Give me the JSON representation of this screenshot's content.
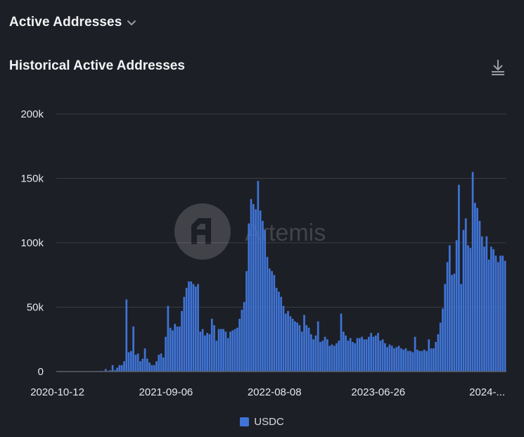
{
  "header": {
    "title": "Active Addresses"
  },
  "chart_title": "Historical Active Addresses",
  "watermark": "Artemis",
  "colors": {
    "background": "#1d1f26",
    "bar": "#3f74d6",
    "grid": "#3a3d46",
    "text": "#e6e7ea"
  },
  "chart_data": {
    "type": "bar",
    "title": "Historical Active Addresses",
    "xlabel": "",
    "ylabel": "",
    "ylim": [
      0,
      200000
    ],
    "y_ticks": [
      0,
      50000,
      100000,
      150000,
      200000
    ],
    "y_tick_labels": [
      "0",
      "50k",
      "100k",
      "150k",
      "200k"
    ],
    "x_tick_labels": [
      "2020-10-12",
      "2021-09-06",
      "2022-08-08",
      "2023-06-26",
      "2024-..."
    ],
    "x_tick_indices": [
      0,
      47,
      94,
      139,
      181
    ],
    "grid": true,
    "legend_position": "bottom",
    "series": [
      {
        "name": "USDC",
        "color": "#3f74d6",
        "values": [
          0,
          0,
          0,
          0,
          0,
          0,
          0,
          0,
          0,
          0,
          0,
          0,
          0,
          0,
          0,
          0,
          0,
          0,
          0,
          500,
          0,
          2000,
          500,
          1000,
          5000,
          1000,
          3000,
          5000,
          5000,
          8000,
          56000,
          15000,
          16000,
          35000,
          13000,
          14000,
          8000,
          10000,
          18000,
          10000,
          7000,
          5000,
          5000,
          8000,
          13000,
          14000,
          11000,
          27000,
          51000,
          34000,
          32000,
          37000,
          35000,
          35000,
          47000,
          58000,
          65000,
          70000,
          70000,
          68000,
          66000,
          68000,
          31000,
          33000,
          28000,
          30000,
          29000,
          41000,
          36000,
          24000,
          33000,
          33000,
          33000,
          31000,
          26000,
          31000,
          32000,
          33000,
          34000,
          41000,
          48000,
          54000,
          78000,
          115000,
          134000,
          130000,
          126000,
          148000,
          125000,
          117000,
          110000,
          89000,
          80000,
          78000,
          75000,
          65000,
          62000,
          58000,
          51000,
          45000,
          47000,
          43000,
          41000,
          39000,
          38000,
          36000,
          31000,
          44000,
          36000,
          34000,
          29000,
          25000,
          28000,
          39000,
          23000,
          24000,
          27000,
          25000,
          20000,
          21000,
          20000,
          22000,
          24000,
          45000,
          31000,
          28000,
          24000,
          26000,
          23000,
          22000,
          26000,
          26000,
          27000,
          25000,
          25000,
          27000,
          30000,
          27000,
          28000,
          30000,
          24000,
          25000,
          22000,
          19000,
          21000,
          20000,
          18000,
          19000,
          20000,
          18000,
          17000,
          18000,
          16000,
          16000,
          15000,
          27000,
          17000,
          16000,
          16000,
          17000,
          16000,
          25000,
          18000,
          18000,
          23000,
          29000,
          38000,
          49000,
          68000,
          85000,
          98000,
          75000,
          76000,
          102000,
          145000,
          68000,
          110000,
          119000,
          98000,
          96000,
          155000,
          131000,
          127000,
          117000,
          105000,
          97000,
          105000,
          87000,
          97000,
          95000,
          90000,
          85000,
          90000,
          90000,
          86000
        ]
      }
    ]
  }
}
